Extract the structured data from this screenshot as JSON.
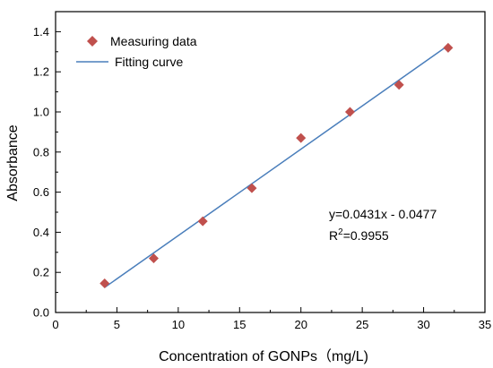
{
  "chart_data": {
    "type": "scatter",
    "xlabel": "Concentration of GONPs（mg/L)",
    "ylabel": "Absorbance",
    "xlim": [
      0,
      35
    ],
    "ylim": [
      0.0,
      1.5
    ],
    "x_ticks": [
      "0",
      "5",
      "10",
      "15",
      "20",
      "25",
      "30",
      "35"
    ],
    "y_ticks": [
      "0.0",
      "0.2",
      "0.4",
      "0.6",
      "0.8",
      "1.0",
      "1.2",
      "1.4"
    ],
    "grid": false,
    "legend_position": "top-left",
    "series": [
      {
        "name": "Measuring data",
        "kind": "scatter",
        "marker": "diamond",
        "color": "#c0504d",
        "x": [
          4,
          8,
          12,
          16,
          20,
          24,
          28,
          32
        ],
        "y": [
          0.145,
          0.27,
          0.455,
          0.62,
          0.87,
          1.0,
          1.135,
          1.32
        ]
      },
      {
        "name": "Fitting curve",
        "kind": "line",
        "color": "#4a7ebb",
        "slope": 0.0431,
        "intercept": -0.0477,
        "x_range": [
          4,
          32
        ]
      }
    ],
    "annotation": {
      "equation": "y=0.0431x - 0.0477",
      "r2_prefix": "R",
      "r2_sup": "2",
      "r2_value": "=0.9955"
    }
  }
}
